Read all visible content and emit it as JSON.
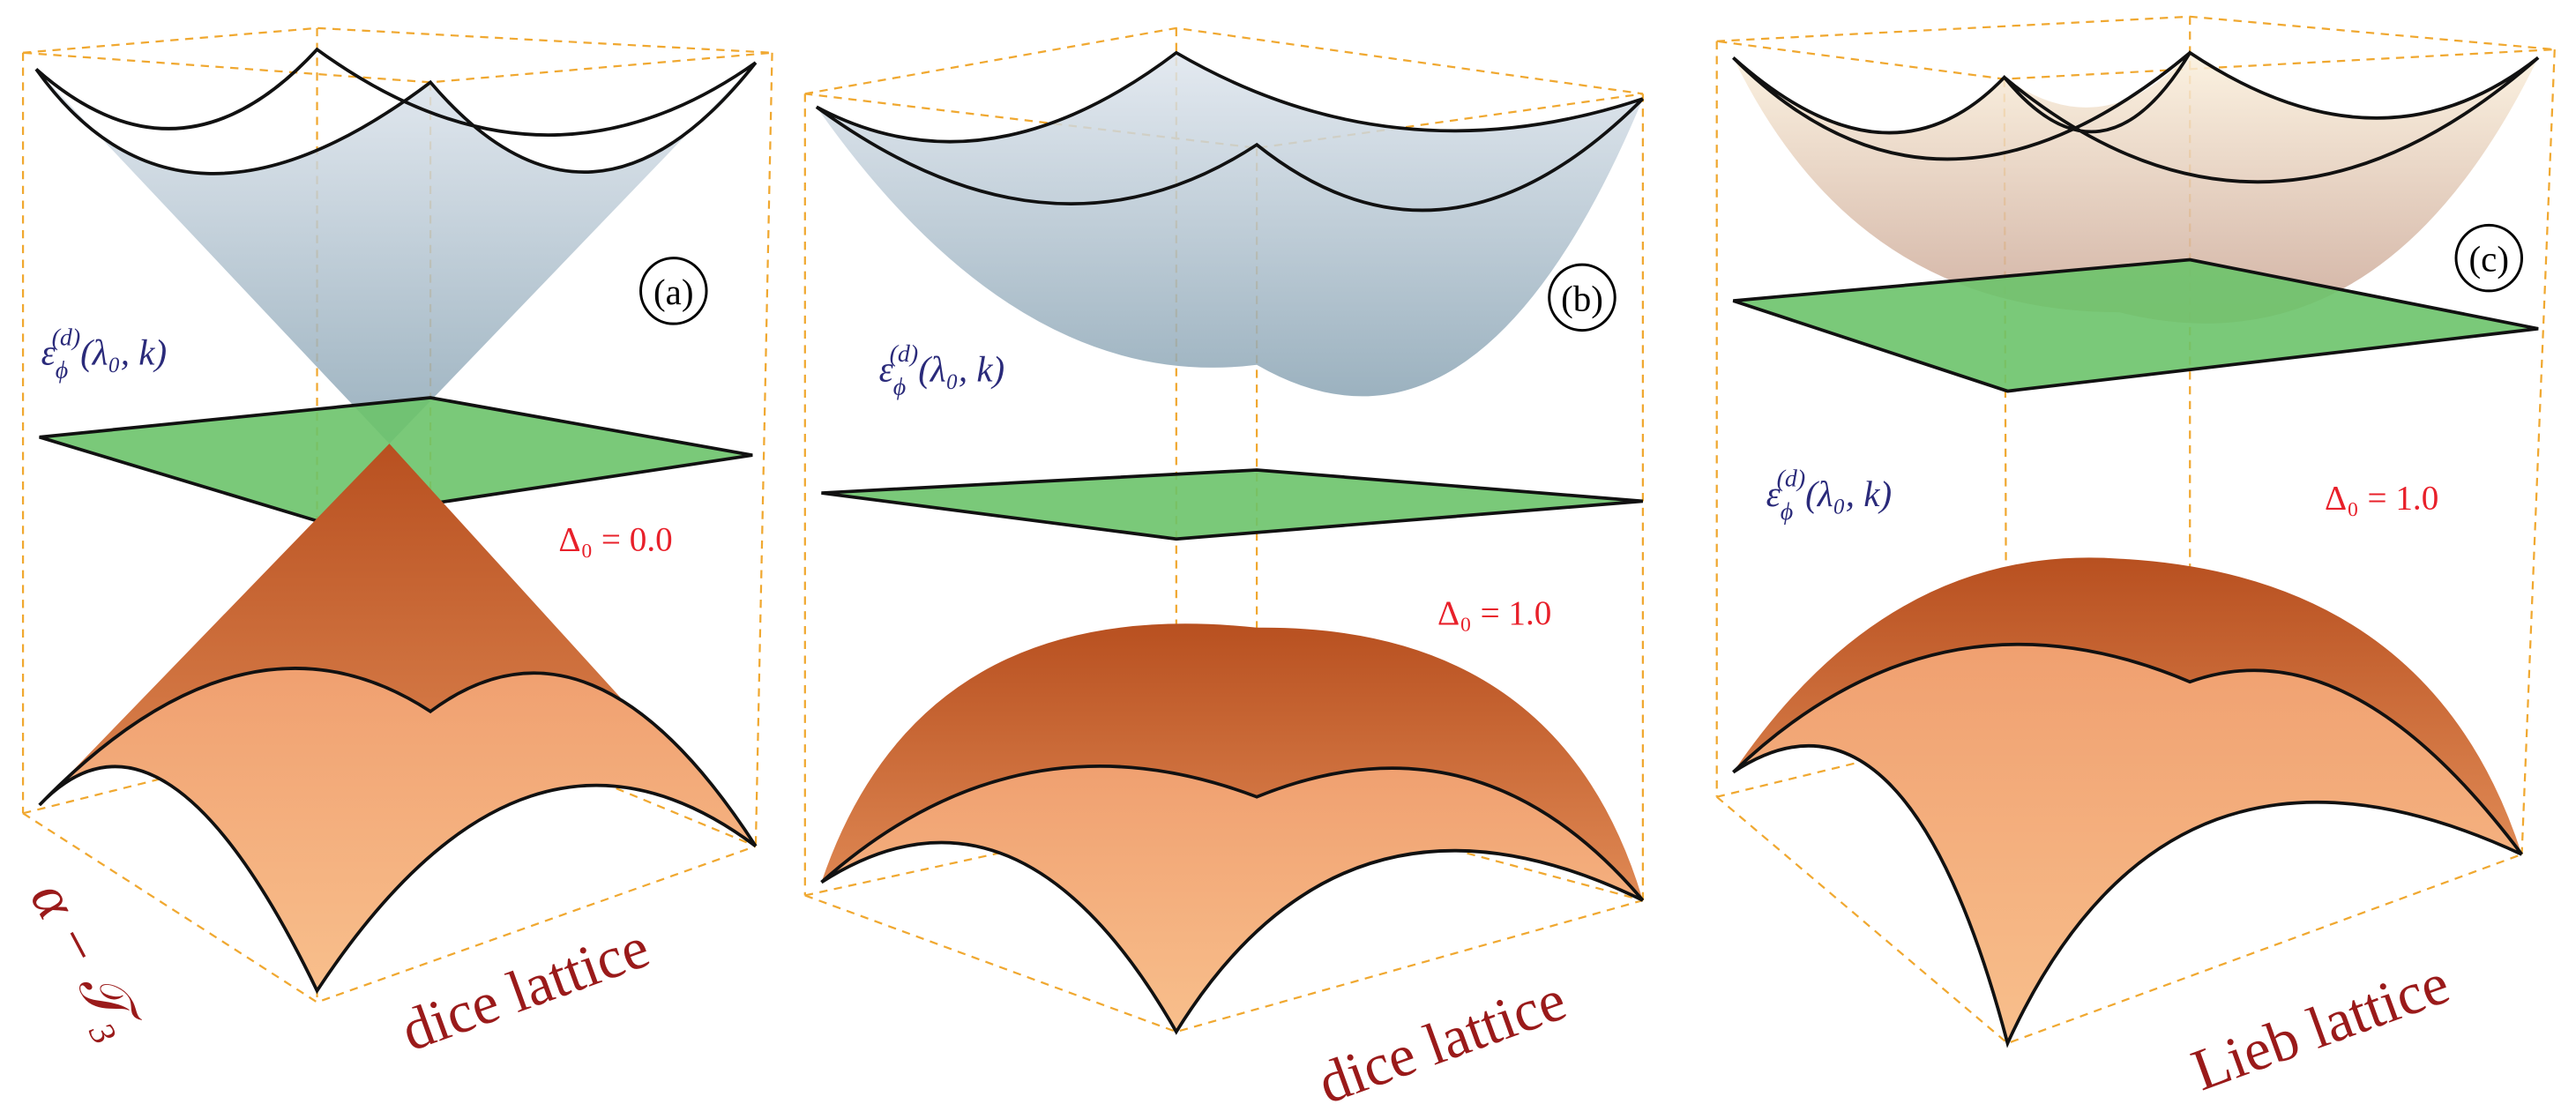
{
  "panels": [
    {
      "label": "(a)",
      "energy": {
        "symbol": "ε",
        "sub": "ϕ",
        "sup": "(d)",
        "args": "(λ₀, k)"
      },
      "gap": "Δ₀ = 0.0",
      "lattice": "dice lattice",
      "extra": "α − 𝒯₃"
    },
    {
      "label": "(b)",
      "energy": {
        "symbol": "ε",
        "sub": "ϕ",
        "sup": "(d)",
        "args": "(λ₀, k)"
      },
      "gap": "Δ₀ = 1.0",
      "lattice": "dice lattice"
    },
    {
      "label": "(c)",
      "energy": {
        "symbol": "ε",
        "sub": "ϕ",
        "sup": "(d)",
        "args": "(λ₀, k)"
      },
      "gap": "Δ₀ = 1.0",
      "lattice": "Lieb lattice"
    }
  ]
}
